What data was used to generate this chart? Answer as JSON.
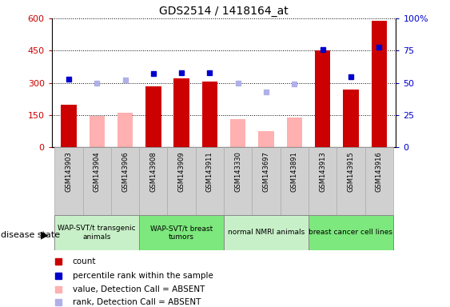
{
  "title": "GDS2514 / 1418164_at",
  "samples": [
    "GSM143903",
    "GSM143904",
    "GSM143906",
    "GSM143908",
    "GSM143909",
    "GSM143911",
    "GSM143330",
    "GSM143697",
    "GSM143891",
    "GSM143913",
    "GSM143915",
    "GSM143916"
  ],
  "count_values": [
    200,
    null,
    null,
    285,
    320,
    308,
    null,
    null,
    null,
    450,
    270,
    590
  ],
  "absent_value_values": [
    null,
    148,
    160,
    null,
    null,
    null,
    133,
    75,
    140,
    null,
    null,
    null
  ],
  "percentile_rank": [
    53,
    null,
    null,
    57,
    58,
    58,
    null,
    null,
    null,
    76,
    55,
    78
  ],
  "absent_rank_values": [
    null,
    50,
    52,
    null,
    null,
    null,
    50,
    43,
    49,
    null,
    null,
    null
  ],
  "ylim_left": [
    0,
    600
  ],
  "ylim_right": [
    0,
    100
  ],
  "yticks_left": [
    0,
    150,
    300,
    450,
    600
  ],
  "yticks_right": [
    0,
    25,
    50,
    75,
    100
  ],
  "groups": [
    {
      "label": "WAP-SVT/t transgenic\nanimals",
      "indices": [
        0,
        1,
        2
      ],
      "color": "#c8f0c8"
    },
    {
      "label": "WAP-SVT/t breast\ntumors",
      "indices": [
        3,
        4,
        5
      ],
      "color": "#7de87d"
    },
    {
      "label": "normal NMRI animals",
      "indices": [
        6,
        7,
        8
      ],
      "color": "#c8f0c8"
    },
    {
      "label": "breast cancer cell lines",
      "indices": [
        9,
        10,
        11
      ],
      "color": "#7de87d"
    }
  ],
  "bar_width": 0.55,
  "color_count": "#cc0000",
  "color_absent_value": "#ffb0b0",
  "color_rank": "#0000cc",
  "color_absent_rank": "#b0b0e8",
  "tick_area_color": "#d0d0d0"
}
